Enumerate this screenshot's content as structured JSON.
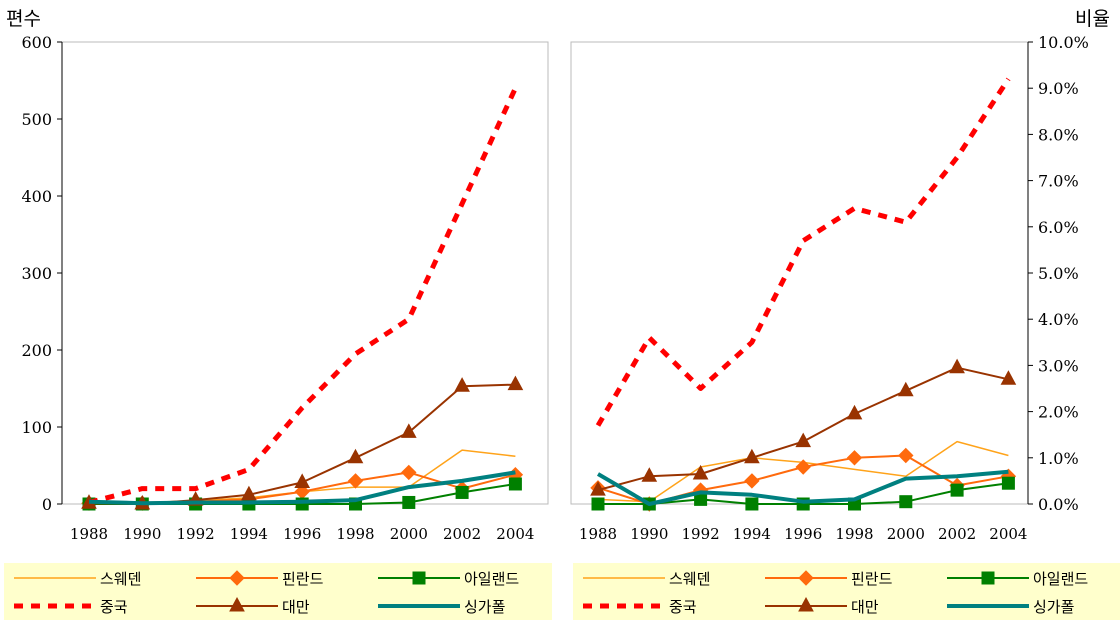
{
  "colors": {
    "스웨덴": "#ffa31a",
    "핀란드": "#ff6a0d",
    "아일랜드": "#008000",
    "중국": "#ff0000",
    "대만": "#993300",
    "싱가폴": "#008080",
    "legend_bg": "#ffffcc"
  },
  "chart_data": [
    {
      "type": "line",
      "ylabel": "편수",
      "ylim": [
        0,
        600
      ],
      "yticks": [
        "0",
        "100",
        "200",
        "300",
        "400",
        "500",
        "600"
      ],
      "x": [
        "1988",
        "1990",
        "1992",
        "1994",
        "1996",
        "1998",
        "2000",
        "2002",
        "2004"
      ],
      "legend_position": "bottom",
      "series": [
        {
          "name": "스웨덴",
          "marker": "none",
          "style": "thin",
          "values": [
            2,
            2,
            4,
            8,
            16,
            22,
            22,
            70,
            62
          ]
        },
        {
          "name": "핀란드",
          "marker": "diamond",
          "style": "normal",
          "values": [
            1,
            1,
            3,
            6,
            16,
            30,
            41,
            20,
            38
          ]
        },
        {
          "name": "아일랜드",
          "marker": "square",
          "style": "normal",
          "values": [
            0,
            0,
            0,
            0,
            0,
            0,
            2,
            15,
            26
          ]
        },
        {
          "name": "중국",
          "marker": "none",
          "style": "dashed",
          "values": [
            2,
            20,
            20,
            45,
            125,
            195,
            240,
            390,
            540
          ]
        },
        {
          "name": "대만",
          "marker": "triangle",
          "style": "normal",
          "values": [
            1,
            0,
            5,
            12,
            28,
            60,
            93,
            153,
            155
          ]
        },
        {
          "name": "싱가폴",
          "marker": "none",
          "style": "thick",
          "values": [
            3,
            1,
            2,
            2,
            3,
            5,
            22,
            30,
            41
          ]
        }
      ]
    },
    {
      "type": "line",
      "ylabel": "비율",
      "ylim": [
        0,
        10
      ],
      "yticks": [
        "0.0%",
        "1.0%",
        "2.0%",
        "3.0%",
        "4.0%",
        "5.0%",
        "6.0%",
        "7.0%",
        "8.0%",
        "9.0%",
        "10.0%"
      ],
      "x": [
        "1988",
        "1990",
        "1992",
        "1994",
        "1996",
        "1998",
        "2000",
        "2002",
        "2004"
      ],
      "legend_position": "bottom",
      "series": [
        {
          "name": "스웨덴",
          "marker": "none",
          "style": "thin",
          "values": [
            0.1,
            0.05,
            0.8,
            1.0,
            0.9,
            0.75,
            0.6,
            1.35,
            1.05
          ]
        },
        {
          "name": "핀란드",
          "marker": "diamond",
          "style": "normal",
          "values": [
            0.35,
            0.0,
            0.3,
            0.5,
            0.8,
            1.0,
            1.05,
            0.4,
            0.6
          ]
        },
        {
          "name": "아일랜드",
          "marker": "square",
          "style": "normal",
          "values": [
            0.0,
            0.0,
            0.1,
            0.0,
            0.0,
            0.0,
            0.05,
            0.3,
            0.45
          ]
        },
        {
          "name": "중국",
          "marker": "none",
          "style": "dashed",
          "values": [
            1.7,
            3.6,
            2.5,
            3.5,
            5.7,
            6.4,
            6.1,
            7.5,
            9.2
          ]
        },
        {
          "name": "대만",
          "marker": "triangle",
          "style": "normal",
          "values": [
            0.3,
            0.6,
            0.65,
            1.0,
            1.35,
            1.95,
            2.45,
            2.95,
            2.7
          ]
        },
        {
          "name": "싱가폴",
          "marker": "none",
          "style": "thick",
          "values": [
            0.65,
            0.0,
            0.25,
            0.2,
            0.05,
            0.1,
            0.55,
            0.6,
            0.7
          ]
        }
      ]
    }
  ]
}
